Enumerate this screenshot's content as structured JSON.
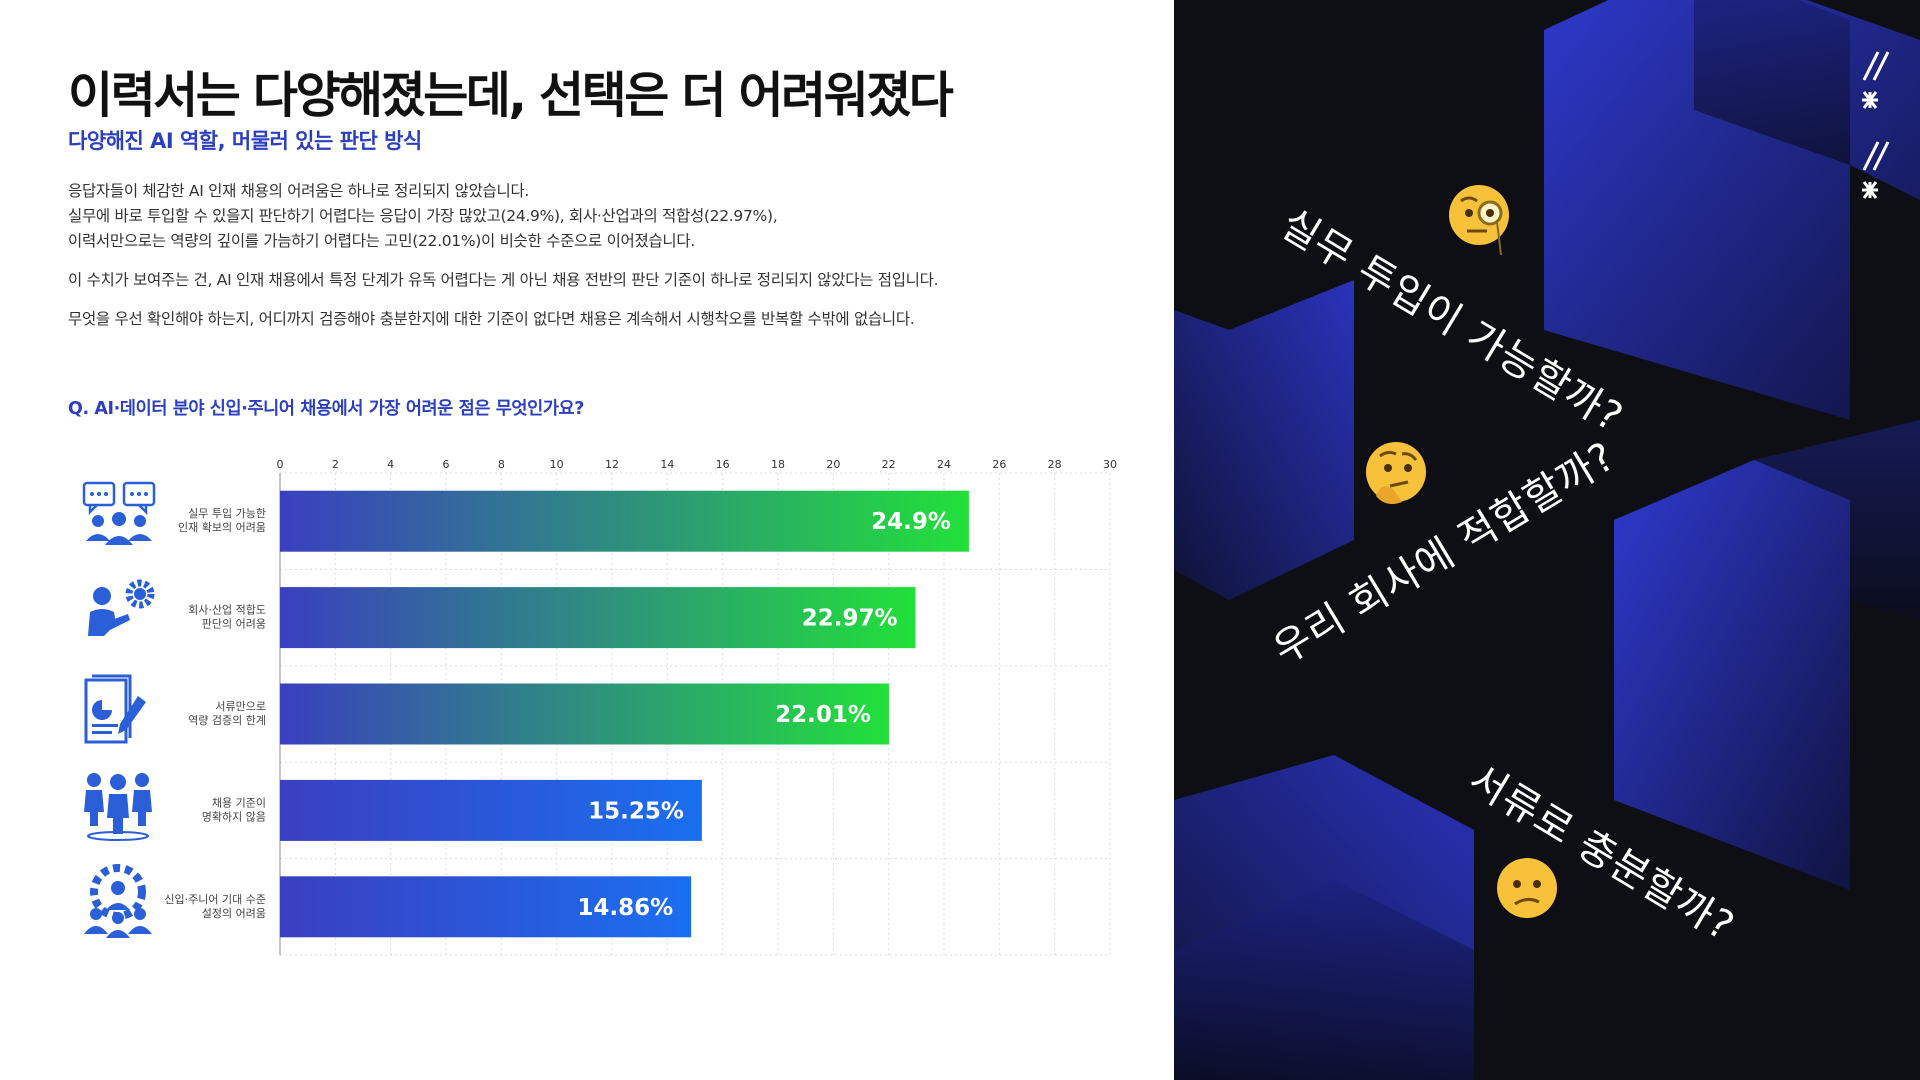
{
  "header": {
    "title": "이력서는 다양해졌는데, 선택은 더 어려워졌다",
    "subtitle": "다양해진 AI 역할, 머물러 있는 판단 방식"
  },
  "body": {
    "p1_line1": "응답자들이 체감한 AI 인재 채용의 어려움은 하나로 정리되지 않았습니다.",
    "p1_line2": "실무에 바로 투입할 수 있을지 판단하기 어렵다는 응답이 가장 많았고(24.9%), 회사·산업과의 적합성(22.97%),",
    "p1_line3": "이력서만으로는 역량의 깊이를 가늠하기 어렵다는 고민(22.01%)이 비슷한 수준으로 이어졌습니다.",
    "p2": "이 수치가 보여주는 건, AI 인재 채용에서 특정 단계가 유독 어렵다는 게 아닌 채용 전반의 판단 기준이 하나로 정리되지 않았다는 점입니다.",
    "p3": "무엇을 우선 확인해야 하는지, 어디까지 검증해야 충분한지에 대한 기준이 없다면 채용은 계속해서 시행착오를 반복할 수밖에 없습니다."
  },
  "question": "Q. AI·데이터 분야 신입·주니어 채용에서 가장 어려운 점은 무엇인가요?",
  "chart_data": {
    "type": "bar",
    "orientation": "horizontal",
    "xlim": [
      0,
      30
    ],
    "xticks": [
      0,
      2,
      4,
      6,
      8,
      10,
      12,
      14,
      16,
      18,
      20,
      22,
      24,
      26,
      28,
      30
    ],
    "grid": true,
    "categories": [
      [
        "실무 투입 가능한",
        "인재 확보의 어려움"
      ],
      [
        "회사·산업 적합도",
        "판단의 어려움"
      ],
      [
        "서류만으로",
        "역량 검증의 한계"
      ],
      [
        "채용 기준이",
        "명확하지 않음"
      ],
      [
        "신입·주니어 기대 수준",
        "설정의 어려움"
      ]
    ],
    "values": [
      24.9,
      22.97,
      22.01,
      15.25,
      14.86
    ],
    "value_labels": [
      "24.9%",
      "22.97%",
      "22.01%",
      "15.25%",
      "14.86%"
    ],
    "category_icons": [
      "chat-people-icon",
      "person-gear-icon",
      "document-pen-icon",
      "people-group-icon",
      "gear-people-icon"
    ],
    "colors": {
      "bar_start": "#3a3fc0",
      "bar_green_end": "#22e03a",
      "bar_blue_end": "#1a6ff0"
    }
  },
  "side_panel": {
    "questions": [
      "실무 투입이 가능할까?",
      "우리 회사에 적합할까?",
      "서류로 충분할까?"
    ],
    "emoji": [
      "🧐",
      "🤔",
      "😕"
    ],
    "emoji_names": [
      "monocle-face-icon",
      "thinking-face-icon",
      "confused-face-icon"
    ],
    "logo_text": "//*//*",
    "colors": {
      "background": "#0d0f14",
      "block": "#2a35b8"
    }
  }
}
